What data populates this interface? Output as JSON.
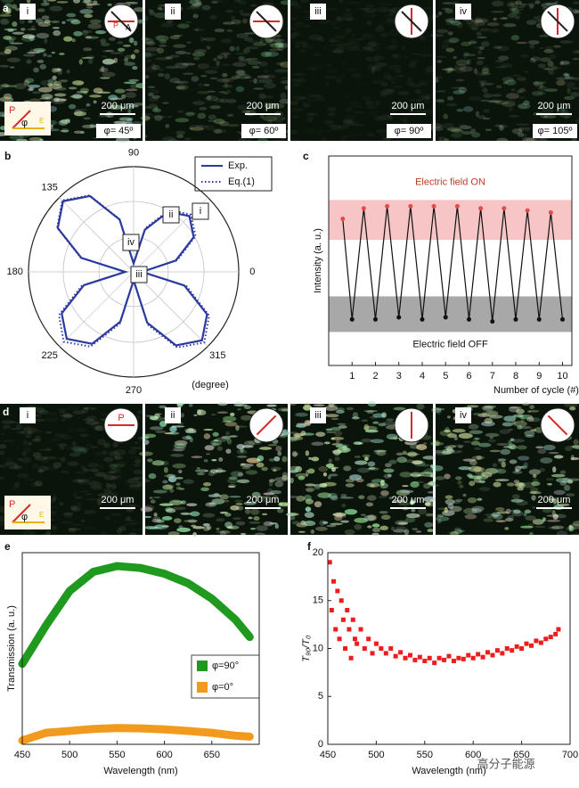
{
  "panels": {
    "a": {
      "label": "a",
      "images": [
        {
          "label": "i",
          "scale": "200 μm",
          "phi": "φ= 45º"
        },
        {
          "label": "ii",
          "scale": "200 μm",
          "phi": "φ= 60º"
        },
        {
          "label": "iii",
          "scale": "200 μm",
          "phi": "φ= 90º"
        },
        {
          "label": "iv",
          "scale": "200 μm",
          "phi": "φ= 105º"
        }
      ],
      "polarizer": [
        "P",
        "A"
      ],
      "inset": [
        "P",
        "φ",
        "E"
      ]
    },
    "d": {
      "label": "d",
      "images": [
        {
          "label": "i",
          "scale": "200 μm"
        },
        {
          "label": "ii",
          "scale": "200 μm"
        },
        {
          "label": "iii",
          "scale": "200 μm"
        },
        {
          "label": "iv",
          "scale": "200 μm"
        }
      ],
      "polarizer": "P",
      "inset": [
        "P",
        "φ",
        "E"
      ]
    }
  },
  "chart_data": [
    {
      "label": "b",
      "type": "polar",
      "x": [
        0,
        15,
        30,
        45,
        60,
        75,
        90,
        105,
        120,
        135,
        150,
        165,
        180,
        195,
        210,
        225,
        240,
        255,
        270,
        285,
        300,
        315,
        330,
        345
      ],
      "series": [
        {
          "name": "Exp.",
          "color": "#2b3a9f",
          "style": "solid",
          "values": [
            0.08,
            0.415,
            0.66,
            0.75,
            0.66,
            0.415,
            0.08,
            0.515,
            0.833,
            0.95,
            0.833,
            0.515,
            0.08,
            0.49,
            0.79,
            0.9,
            0.79,
            0.49,
            0.08,
            0.5,
            0.807,
            0.92,
            0.807,
            0.5
          ]
        },
        {
          "name": "Eq.(1)",
          "color": "#2b3a9f",
          "style": "dotted",
          "values": [
            0.08,
            0.43,
            0.68,
            0.77,
            0.68,
            0.43,
            0.08,
            0.52,
            0.84,
            0.96,
            0.84,
            0.52,
            0.08,
            0.51,
            0.82,
            0.94,
            0.82,
            0.51,
            0.08,
            0.52,
            0.83,
            0.95,
            0.83,
            0.52
          ]
        }
      ],
      "rlim": [
        0,
        1
      ],
      "rgrid": [
        0.33,
        0.67,
        1
      ],
      "angle_ticks": [
        90,
        135,
        180,
        225,
        270,
        315,
        0
      ],
      "angle_unit": "(degree)",
      "annotations": [
        "i",
        "ii",
        "iii",
        "iv"
      ]
    },
    {
      "label": "c",
      "type": "line",
      "x": [
        0.6,
        1,
        1.5,
        2,
        2.5,
        3,
        3.5,
        4,
        4.5,
        5,
        5.5,
        6,
        6.5,
        7,
        7.5,
        8,
        8.5,
        9,
        9.5,
        10
      ],
      "values": [
        0.7,
        0.22,
        0.75,
        0.22,
        0.76,
        0.23,
        0.76,
        0.22,
        0.76,
        0.23,
        0.76,
        0.22,
        0.75,
        0.21,
        0.75,
        0.22,
        0.74,
        0.22,
        0.73,
        0.22
      ],
      "color": "#111",
      "bands": [
        {
          "label": "Electric field ON",
          "range": [
            0.6,
            0.79
          ],
          "color": "#f7c5c5",
          "marker_color": "#e34a4a",
          "label_color": "#c0392b"
        },
        {
          "label": "Electric field OFF",
          "range": [
            0.16,
            0.33
          ],
          "color": "#a8a8a8",
          "marker_color": "#111",
          "label_color": "#111"
        }
      ],
      "xlim": [
        0,
        10.4
      ],
      "ylim": [
        0,
        1
      ],
      "xticks": [
        1,
        2,
        3,
        4,
        5,
        6,
        7,
        8,
        9,
        10
      ],
      "xlabel": "Number of cycle (#)",
      "ylabel": "Intensity (a. u.)"
    },
    {
      "label": "e",
      "type": "line",
      "x": [
        450,
        475,
        500,
        525,
        550,
        575,
        600,
        625,
        650,
        675,
        690
      ],
      "series": [
        {
          "name": "φ=90°",
          "color": "#1f9a1f",
          "values": [
            0.42,
            0.62,
            0.8,
            0.9,
            0.93,
            0.92,
            0.89,
            0.84,
            0.76,
            0.65,
            0.56
          ]
        },
        {
          "name": "φ=0°",
          "color": "#f29a1e",
          "values": [
            0.02,
            0.06,
            0.07,
            0.08,
            0.085,
            0.083,
            0.078,
            0.07,
            0.06,
            0.045,
            0.04
          ]
        }
      ],
      "xlim": [
        450,
        700
      ],
      "ylim": [
        0,
        1
      ],
      "xticks": [
        450,
        500,
        550,
        600,
        650
      ],
      "xlabel": "Wavelength (nm)",
      "ylabel": "Transmission (a. u.)"
    },
    {
      "label": "f",
      "type": "scatter",
      "color": "#ee1c1c",
      "x": [
        452,
        454,
        456,
        458,
        460,
        462,
        464,
        466,
        468,
        470,
        472,
        474,
        476,
        478,
        480,
        484,
        488,
        492,
        496,
        500,
        505,
        510,
        515,
        520,
        525,
        530,
        535,
        540,
        545,
        550,
        555,
        560,
        565,
        570,
        575,
        580,
        585,
        590,
        595,
        600,
        605,
        610,
        615,
        620,
        625,
        630,
        635,
        640,
        645,
        650,
        655,
        660,
        665,
        670,
        675,
        680,
        685,
        688
      ],
      "values": [
        19,
        14,
        17,
        12,
        16,
        11,
        15,
        13,
        10,
        14,
        12,
        9,
        13,
        11,
        10.5,
        12,
        10,
        11,
        9.5,
        10.5,
        10,
        9.5,
        10,
        9.2,
        9.6,
        9,
        9.3,
        8.8,
        9.1,
        8.7,
        9,
        8.5,
        9,
        8.8,
        9.2,
        8.7,
        9,
        8.9,
        9.3,
        9,
        9.4,
        9.1,
        9.6,
        9.3,
        9.8,
        9.5,
        10,
        9.8,
        10.2,
        10,
        10.5,
        10.3,
        10.8,
        10.6,
        11,
        11.2,
        11.5,
        12
      ],
      "xlim": [
        450,
        700
      ],
      "ylim": [
        0,
        20
      ],
      "xticks": [
        450,
        500,
        550,
        600,
        650,
        700
      ],
      "yticks": [
        0,
        5,
        10,
        15,
        20
      ],
      "xlabel": "Wavelength (nm)",
      "ylabel": "T₉₀/T₀"
    }
  ],
  "watermark": "高分子能源"
}
